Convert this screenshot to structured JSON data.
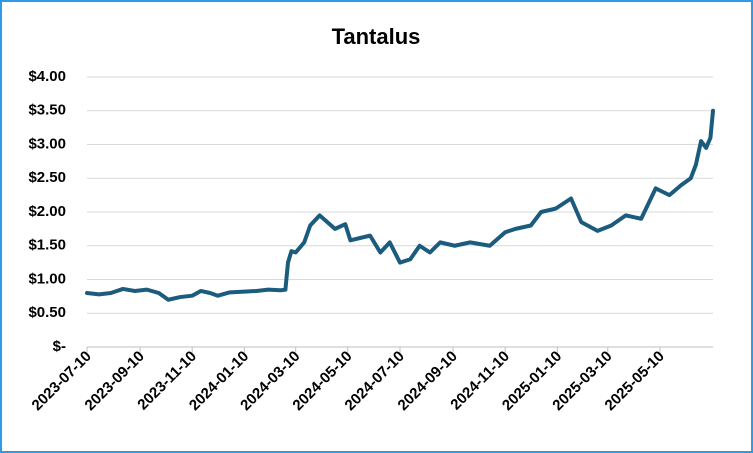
{
  "chart_data": {
    "type": "line",
    "title": "Tantalus",
    "x": [
      "2023-07-10",
      "2023-07-24",
      "2023-08-07",
      "2023-08-21",
      "2023-09-04",
      "2023-09-18",
      "2023-10-02",
      "2023-10-13",
      "2023-10-27",
      "2023-11-10",
      "2023-11-20",
      "2023-12-01",
      "2023-12-10",
      "2023-12-24",
      "2024-01-10",
      "2024-01-24",
      "2024-02-07",
      "2024-02-21",
      "2024-02-27",
      "2024-03-01",
      "2024-03-05",
      "2024-03-10",
      "2024-03-20",
      "2024-03-27",
      "2024-04-07",
      "2024-04-25",
      "2024-05-07",
      "2024-05-13",
      "2024-06-05",
      "2024-06-17",
      "2024-06-28",
      "2024-07-10",
      "2024-07-22",
      "2024-08-02",
      "2024-08-14",
      "2024-08-26",
      "2024-09-12",
      "2024-09-30",
      "2024-10-23",
      "2024-11-10",
      "2024-11-22",
      "2024-12-10",
      "2024-12-22",
      "2025-01-08",
      "2025-01-26",
      "2025-02-07",
      "2025-02-26",
      "2025-03-14",
      "2025-03-31",
      "2025-04-18",
      "2025-05-05",
      "2025-05-21",
      "2025-06-04",
      "2025-06-15",
      "2025-06-21",
      "2025-06-27",
      "2025-07-03",
      "2025-07-08",
      "2025-07-11"
    ],
    "series": [
      {
        "name": "Tantalus",
        "color": "#1b5c7e",
        "values": [
          0.8,
          0.78,
          0.8,
          0.86,
          0.83,
          0.85,
          0.8,
          0.7,
          0.74,
          0.76,
          0.83,
          0.8,
          0.76,
          0.81,
          0.82,
          0.83,
          0.85,
          0.84,
          0.85,
          1.25,
          1.42,
          1.4,
          1.55,
          1.8,
          1.95,
          1.75,
          1.82,
          1.58,
          1.65,
          1.4,
          1.55,
          1.25,
          1.3,
          1.5,
          1.4,
          1.55,
          1.5,
          1.55,
          1.5,
          1.7,
          1.75,
          1.8,
          2.0,
          2.05,
          2.2,
          1.85,
          1.72,
          1.8,
          1.95,
          1.9,
          2.35,
          2.25,
          2.4,
          2.5,
          2.7,
          3.05,
          2.95,
          3.1,
          3.5
        ]
      }
    ],
    "xlim": [
      "2023-07-10",
      "2025-07-11"
    ],
    "xticks": [
      "2023-07-10",
      "2023-09-10",
      "2023-11-10",
      "2024-01-10",
      "2024-03-10",
      "2024-05-10",
      "2024-07-10",
      "2024-09-10",
      "2024-11-10",
      "2025-01-10",
      "2025-03-10",
      "2025-05-10"
    ],
    "ylim": [
      0,
      4
    ],
    "yticks": [
      {
        "value": 0,
        "label": "$-"
      },
      {
        "value": 0.5,
        "label": "$0.50"
      },
      {
        "value": 1,
        "label": "$1.00"
      },
      {
        "value": 1.5,
        "label": "$1.50"
      },
      {
        "value": 2,
        "label": "$2.00"
      },
      {
        "value": 2.5,
        "label": "$2.50"
      },
      {
        "value": 3,
        "label": "$3.00"
      },
      {
        "value": 3.5,
        "label": "$3.50"
      },
      {
        "value": 4,
        "label": "$4.00"
      }
    ],
    "grid": true
  }
}
